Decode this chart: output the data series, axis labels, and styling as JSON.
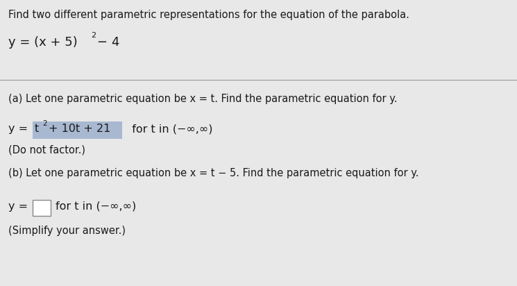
{
  "bg_color": "#e8e8e8",
  "text_color": "#1a1a1a",
  "title_text": "Find two different parametric representations for the equation of the parabola.",
  "part_a_label": "(a) Let one parametric equation be x = t. Find the parametric equation for y.",
  "part_a_note": "(Do not factor.)",
  "part_b_label": "(b) Let one parametric equation be x = t − 5. Find the parametric equation for y.",
  "part_b_note": "(Simplify your answer.)",
  "highlight_color": "#a8b8d0",
  "box_edge_color": "#888888",
  "box_fill_color": "#ffffff",
  "separator_color": "#999999",
  "fs_title": 10.5,
  "fs_body": 10.5,
  "fs_math": 11.5,
  "fs_sup": 7.5
}
